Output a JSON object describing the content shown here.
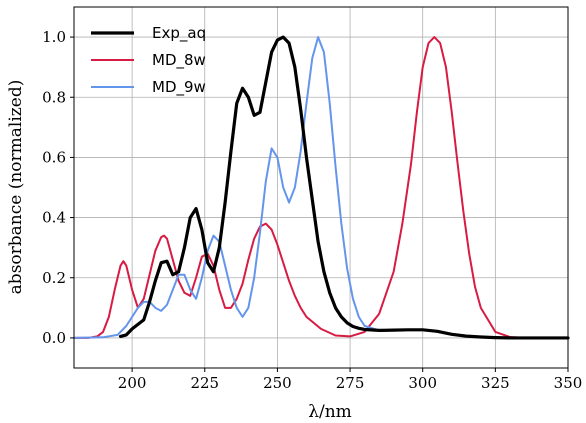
{
  "chart_data": {
    "type": "line",
    "title": "",
    "xlabel": "λ/nm",
    "ylabel": "absorbance (normalized)",
    "xlim": [
      180,
      350
    ],
    "ylim": [
      -0.1,
      1.1
    ],
    "xticks": [
      200,
      225,
      250,
      275,
      300,
      325,
      350
    ],
    "yticks": [
      0.0,
      0.2,
      0.4,
      0.6,
      0.8,
      1.0
    ],
    "xtick_labels": [
      "200",
      "225",
      "250",
      "275",
      "300",
      "325",
      "350"
    ],
    "ytick_labels": [
      "0.0",
      "0.2",
      "0.4",
      "0.6",
      "0.8",
      "1.0"
    ],
    "grid": true,
    "legend_position": "top-left",
    "series": [
      {
        "name": "Exp_aq",
        "color": "#000000",
        "x": [
          196,
          198,
          200,
          202,
          204,
          206,
          208,
          210,
          212,
          214,
          216,
          218,
          220,
          222,
          224,
          226,
          228,
          230,
          232,
          234,
          236,
          238,
          240,
          242,
          244,
          246,
          248,
          250,
          252,
          254,
          256,
          258,
          260,
          262,
          264,
          266,
          268,
          270,
          272,
          274,
          276,
          278,
          280,
          285,
          290,
          295,
          300,
          305,
          310,
          315,
          320,
          325,
          330,
          335,
          340,
          345,
          350
        ],
        "y": [
          0.005,
          0.01,
          0.03,
          0.045,
          0.06,
          0.12,
          0.19,
          0.25,
          0.255,
          0.21,
          0.22,
          0.3,
          0.4,
          0.43,
          0.36,
          0.25,
          0.22,
          0.3,
          0.45,
          0.62,
          0.78,
          0.83,
          0.8,
          0.74,
          0.75,
          0.85,
          0.95,
          0.99,
          1.0,
          0.98,
          0.9,
          0.76,
          0.6,
          0.46,
          0.32,
          0.22,
          0.15,
          0.1,
          0.07,
          0.05,
          0.038,
          0.032,
          0.028,
          0.025,
          0.026,
          0.027,
          0.027,
          0.022,
          0.012,
          0.006,
          0.003,
          0.001,
          0.0,
          0.0,
          0.0,
          0.0,
          0.0
        ]
      },
      {
        "name": "MD_8w",
        "color": "#d81b43",
        "x": [
          180,
          185,
          188,
          190,
          192,
          194,
          196,
          197,
          198,
          200,
          202,
          204,
          206,
          208,
          210,
          211,
          212,
          214,
          216,
          218,
          220,
          222,
          224,
          226,
          228,
          230,
          232,
          234,
          236,
          238,
          240,
          242,
          244,
          246,
          248,
          250,
          252,
          254,
          256,
          258,
          260,
          265,
          270,
          275,
          280,
          285,
          290,
          293,
          296,
          298,
          300,
          302,
          304,
          306,
          308,
          310,
          312,
          314,
          316,
          318,
          320,
          325,
          330,
          335,
          340,
          345,
          350
        ],
        "y": [
          0.0,
          0.0,
          0.005,
          0.02,
          0.07,
          0.16,
          0.24,
          0.255,
          0.24,
          0.16,
          0.1,
          0.13,
          0.21,
          0.29,
          0.335,
          0.34,
          0.33,
          0.26,
          0.19,
          0.15,
          0.14,
          0.2,
          0.27,
          0.28,
          0.24,
          0.16,
          0.1,
          0.1,
          0.13,
          0.18,
          0.26,
          0.33,
          0.37,
          0.38,
          0.36,
          0.31,
          0.25,
          0.19,
          0.14,
          0.1,
          0.07,
          0.03,
          0.008,
          0.005,
          0.02,
          0.08,
          0.22,
          0.38,
          0.58,
          0.75,
          0.9,
          0.98,
          1.0,
          0.98,
          0.9,
          0.75,
          0.58,
          0.42,
          0.28,
          0.17,
          0.1,
          0.02,
          0.003,
          0.0,
          0.0,
          0.0,
          0.0
        ]
      },
      {
        "name": "MD_9w",
        "color": "#6495ed",
        "x": [
          180,
          190,
          195,
          198,
          200,
          202,
          204,
          206,
          208,
          210,
          212,
          214,
          216,
          218,
          220,
          222,
          224,
          226,
          228,
          230,
          232,
          234,
          236,
          238,
          240,
          242,
          244,
          246,
          248,
          250,
          252,
          254,
          256,
          258,
          260,
          262,
          264,
          266,
          268,
          270,
          272,
          274,
          276,
          278,
          280,
          285,
          290,
          295,
          300,
          305,
          310,
          320,
          330,
          340,
          350
        ],
        "y": [
          0.0,
          0.002,
          0.01,
          0.04,
          0.07,
          0.1,
          0.12,
          0.12,
          0.1,
          0.09,
          0.11,
          0.16,
          0.21,
          0.21,
          0.16,
          0.13,
          0.2,
          0.29,
          0.34,
          0.32,
          0.24,
          0.16,
          0.1,
          0.07,
          0.1,
          0.2,
          0.35,
          0.52,
          0.63,
          0.6,
          0.5,
          0.45,
          0.5,
          0.62,
          0.78,
          0.93,
          1.0,
          0.95,
          0.78,
          0.57,
          0.38,
          0.23,
          0.13,
          0.07,
          0.04,
          0.025,
          0.025,
          0.028,
          0.027,
          0.02,
          0.012,
          0.003,
          0.0,
          0.0,
          0.0
        ]
      }
    ]
  }
}
